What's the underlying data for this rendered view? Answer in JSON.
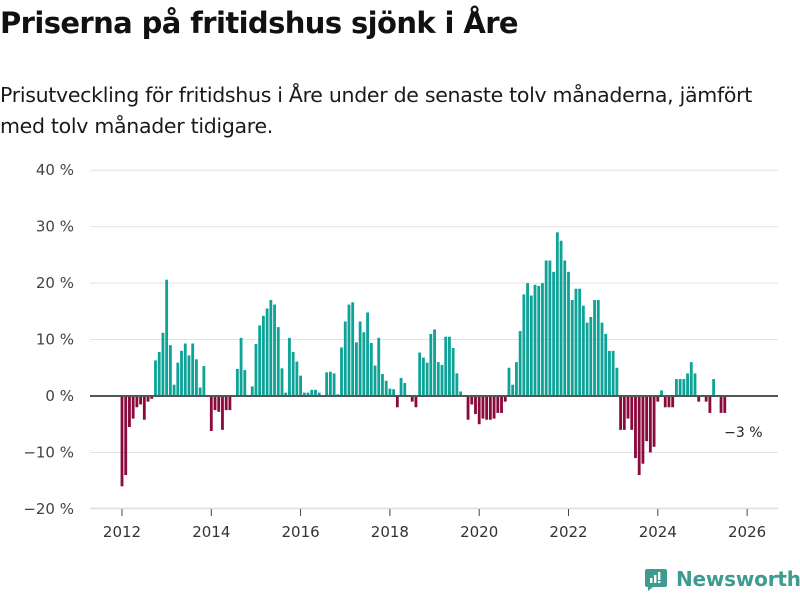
{
  "header": {
    "title": "Priserna på fritidshus sjönk i Åre",
    "subtitle": "Prisutveckling för fritidshus i Åre under de senaste tolv månaderna, jämfört med tolv månader tidigare."
  },
  "brand": {
    "name": "Newsworthy",
    "color": "#3e9b91",
    "icon": "bar-chart-speech-bubble-icon"
  },
  "chart_data": {
    "type": "bar",
    "title": "Priserna på fritidshus sjönk i Åre",
    "subtitle": "Prisutveckling för fritidshus i Åre under de senaste tolv månaderna, jämfört med tolv månader tidigare.",
    "xlabel": "",
    "ylabel": "",
    "frequency": "monthly",
    "start": "2012-01",
    "ylim": [
      -20,
      40
    ],
    "yticks": [
      -20,
      -10,
      0,
      10,
      20,
      30,
      40
    ],
    "ytick_labels": [
      "−20 %",
      "−10 %",
      "0 %",
      "10 %",
      "20 %",
      "30 %",
      "40 %"
    ],
    "xticks": [
      "2012",
      "2014",
      "2016",
      "2018",
      "2020",
      "2022",
      "2024",
      "2026"
    ],
    "grid": true,
    "legend": "none",
    "colors": {
      "positive": "#0ea397",
      "negative": "#8b0a3d",
      "zero_line": "#555555",
      "grid": "#e2e2e2"
    },
    "annotation": {
      "label": "−3 %",
      "date": "2025-12",
      "value": -3
    },
    "values": [
      -16,
      -14,
      -5.5,
      -4,
      -2,
      -1.5,
      -4.2,
      -1,
      -0.5,
      6.3,
      7.8,
      11.2,
      20.6,
      9,
      2,
      5.9,
      8,
      9.3,
      7.2,
      9.3,
      6.5,
      1.5,
      5.3,
      null,
      -6.2,
      -2.5,
      -2.8,
      -6,
      -2.5,
      -2.5,
      null,
      4.8,
      10.3,
      4.6,
      null,
      1.7,
      9.2,
      12.5,
      14.2,
      15.5,
      17,
      16.2,
      12.2,
      4.9,
      0.6,
      10.3,
      7.8,
      6.1,
      3.6,
      0.6,
      0.6,
      1.1,
      1.1,
      0.6,
      null,
      4.2,
      4.3,
      4,
      0.3,
      8.6,
      13.2,
      16.2,
      16.6,
      9.5,
      13.2,
      11.3,
      14.8,
      9.4,
      5.4,
      10.3,
      3.9,
      2.7,
      1.3,
      1.2,
      -2,
      3.2,
      2.3,
      null,
      -1,
      -2,
      7.7,
      6.8,
      5.9,
      11,
      11.8,
      6,
      5.5,
      10.5,
      10.5,
      8.5,
      4,
      0.8,
      null,
      -4.2,
      -1.5,
      -3.2,
      -5,
      -4,
      -4.2,
      -4.2,
      -4,
      -3,
      -3,
      -1,
      5,
      2,
      6,
      11.5,
      18,
      20,
      17.8,
      19.7,
      19.5,
      20,
      24,
      24,
      22,
      29,
      27.5,
      24,
      22,
      17,
      19,
      19,
      16,
      13,
      14,
      17,
      17,
      13,
      11,
      8,
      8,
      5,
      -6,
      -6,
      -4,
      -6,
      -11,
      -14,
      -12,
      -8,
      -10,
      -9,
      -1,
      1,
      -2,
      -2,
      -2,
      3,
      3,
      3,
      4,
      6,
      4,
      -1,
      null,
      -1,
      -3,
      3,
      null,
      -3,
      -3
    ]
  }
}
